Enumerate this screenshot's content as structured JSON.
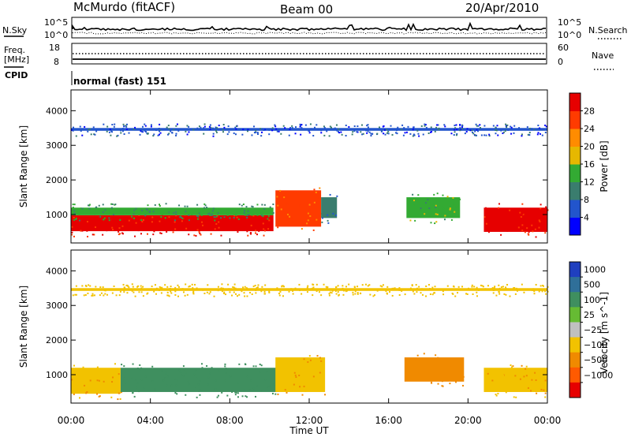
{
  "header": {
    "station": "McMurdo (fitACF)",
    "beam": "Beam 00",
    "date": "20/Apr/2010"
  },
  "noise_panel": {
    "left_label": "N.Sky",
    "right_label": "N.Search",
    "left_ticks": [
      "10^5",
      "10^0"
    ],
    "right_ticks": [
      "10^5",
      "10^0"
    ]
  },
  "freq_panel": {
    "left_label_line1": "Freq.",
    "left_label_line2": "[MHz]",
    "right_label": "Nave",
    "left_ticks": [
      "18",
      "8"
    ],
    "right_ticks": [
      "60",
      "0"
    ]
  },
  "cpid_panel": {
    "label": "CPID",
    "text": "normal (fast) 151"
  },
  "colors": {
    "power_scale": [
      "#0000ff",
      "#2255cc",
      "#3a7d6e",
      "#33aa33",
      "#e6b800",
      "#ff8c00",
      "#ff3b00",
      "#e60000"
    ],
    "velocity_scale": [
      "#1f3fbf",
      "#2f6f99",
      "#3f8f5f",
      "#66bb33",
      "#c0c0c0",
      "#f2c200",
      "#f08a00",
      "#ff5a00",
      "#e60000"
    ]
  },
  "chart_data": [
    {
      "type": "heatmap",
      "title": "",
      "ylabel": "Slant Range [km]",
      "xlabel": "",
      "ylim": [
        180,
        4600
      ],
      "xlim": [
        0,
        24
      ],
      "yticks": [
        "1000",
        "2000",
        "3000",
        "4000"
      ],
      "colorbar": {
        "label": "Power [dB]",
        "ticks": [
          "4",
          "8",
          "12",
          "16",
          "20",
          "24",
          "28"
        ],
        "range": [
          0,
          32
        ]
      },
      "regions": [
        {
          "t0": 0.0,
          "t1": 10.2,
          "r0": 520,
          "r1": 980,
          "value": 28
        },
        {
          "t0": 0.0,
          "t1": 10.2,
          "r0": 980,
          "r1": 1200,
          "value": 12
        },
        {
          "t0": 10.3,
          "t1": 12.6,
          "r0": 650,
          "r1": 1700,
          "value": 24
        },
        {
          "t0": 12.6,
          "t1": 13.4,
          "r0": 900,
          "r1": 1500,
          "value": 8
        },
        {
          "t0": 16.9,
          "t1": 19.6,
          "r0": 900,
          "r1": 1500,
          "value": 14
        },
        {
          "t0": 20.8,
          "t1": 24.0,
          "r0": 500,
          "r1": 1200,
          "value": 28
        },
        {
          "t0": 0.0,
          "t1": 24.0,
          "r0": 3420,
          "r1": 3500,
          "value": 6
        }
      ]
    },
    {
      "type": "heatmap",
      "title": "",
      "ylabel": "Slant Range [km]",
      "xlabel": "Time UT",
      "ylim": [
        180,
        4600
      ],
      "xlim": [
        0,
        24
      ],
      "yticks": [
        "1000",
        "2000",
        "3000",
        "4000"
      ],
      "xticks": [
        "00:00",
        "04:00",
        "08:00",
        "12:00",
        "16:00",
        "20:00",
        "00:00"
      ],
      "colorbar": {
        "label": "Velocity [m s^-1]",
        "ticks": [
          "1000",
          "500",
          "100",
          "25",
          "−25",
          "−100",
          "−500",
          "−1000"
        ]
      },
      "regions": [
        {
          "t0": 0.0,
          "t1": 2.5,
          "r0": 450,
          "r1": 1200,
          "value": -100
        },
        {
          "t0": 2.5,
          "t1": 10.5,
          "r0": 500,
          "r1": 1200,
          "value": 300
        },
        {
          "t0": 10.3,
          "t1": 12.8,
          "r0": 500,
          "r1": 1500,
          "value": -100
        },
        {
          "t0": 16.8,
          "t1": 19.8,
          "r0": 800,
          "r1": 1500,
          "value": -150
        },
        {
          "t0": 20.8,
          "t1": 24.0,
          "r0": 500,
          "r1": 1200,
          "value": -100
        },
        {
          "t0": 0.0,
          "t1": 24.0,
          "r0": 3420,
          "r1": 3500,
          "value": -50
        }
      ]
    }
  ]
}
